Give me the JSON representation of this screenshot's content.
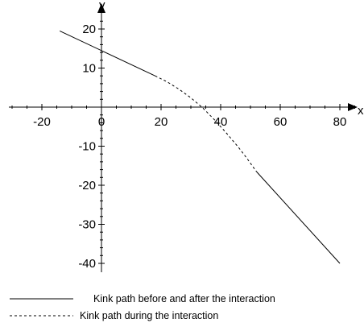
{
  "chart_data": {
    "type": "line",
    "title": "",
    "xlabel": "x",
    "ylabel": "y",
    "xlim": [
      -32,
      87
    ],
    "ylim": [
      -41,
      24
    ],
    "x_ticks": [
      -20,
      0,
      20,
      40,
      60,
      80
    ],
    "y_ticks": [
      -40,
      -30,
      -20,
      -10,
      0,
      10,
      20
    ],
    "x_tick_labels": [
      "-20",
      "0",
      "20",
      "40",
      "60",
      "80"
    ],
    "y_tick_labels": [
      "-40",
      "-30",
      "-20",
      "-10",
      "10",
      "20"
    ],
    "grid": false,
    "legend_placement": "bottom",
    "series": [
      {
        "name": "Kink path before and after the interaction",
        "style": "solid",
        "color": "#000000",
        "segments": [
          {
            "x": [
              -14,
              18
            ],
            "y": [
              19.5,
              8
            ]
          },
          {
            "x": [
              52,
              80
            ],
            "y": [
              -16.5,
              -40
            ]
          }
        ]
      },
      {
        "name": "Kink path during the interaction",
        "style": "dashed",
        "color": "#000000",
        "segments": [
          {
            "x": [
              18,
              22,
              26,
              30,
              34,
              38,
              42,
              46,
              49,
              52
            ],
            "y": [
              8,
              6.5,
              4.6,
              2.4,
              -0.2,
              -3.3,
              -6.7,
              -10.3,
              -13.3,
              -16.5
            ]
          }
        ]
      }
    ]
  }
}
